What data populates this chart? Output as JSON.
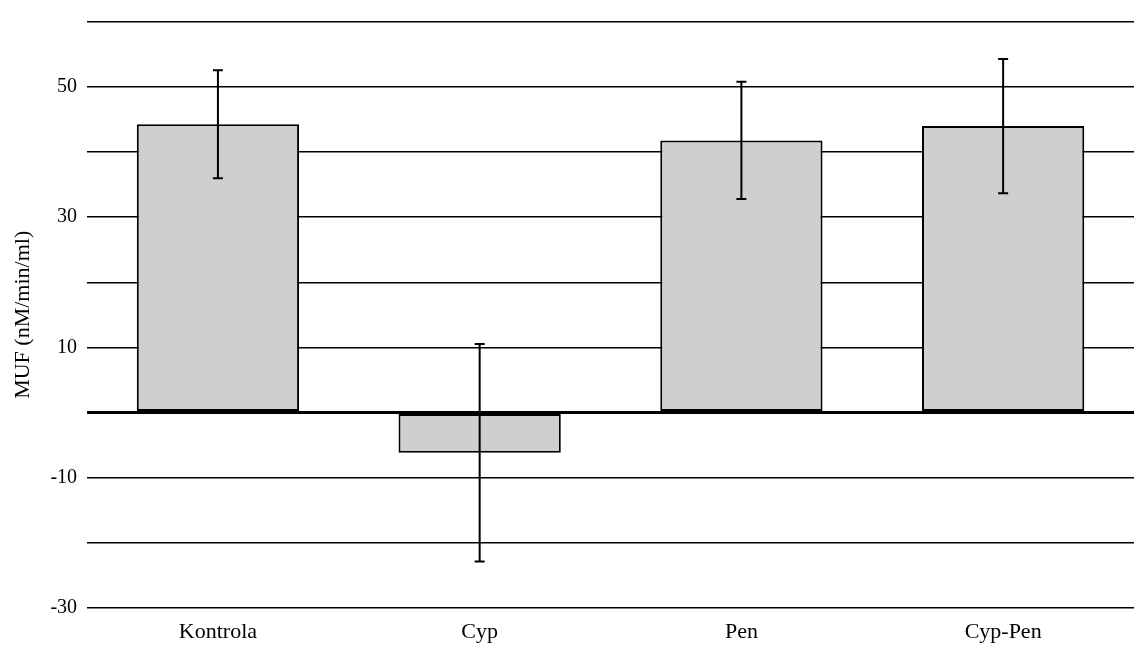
{
  "chart_data": {
    "type": "bar",
    "ylabel": "MUF (nM/min/ml)",
    "categories": [
      "Kontrola",
      "Cyp",
      "Pen",
      "Cyp-Pen"
    ],
    "values": [
      44.3,
      -6.2,
      41.8,
      44.0
    ],
    "errors": [
      8.3,
      16.7,
      9.0,
      10.3
    ],
    "color": "#d0cfd0",
    "ylim": [
      -30,
      60
    ],
    "yticks": [
      -30,
      {
        "value": -20,
        "label": null
      },
      -10,
      {
        "value": 0,
        "label": null
      },
      10,
      {
        "value": 20,
        "label": null
      },
      30,
      {
        "value": 40,
        "label": null
      },
      50,
      {
        "value": 60,
        "label": null
      }
    ],
    "grid": "y",
    "legend": false
  }
}
